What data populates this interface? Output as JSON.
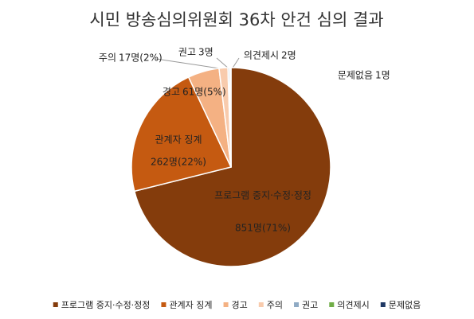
{
  "chart_data": {
    "type": "pie",
    "title": "시민 방송심의위원회 36차 안건 심의 결과",
    "categories": [
      "프로그램 중지·수정·정정",
      "관계자 징계",
      "경고",
      "주의",
      "권고",
      "의견제시",
      "문제없음"
    ],
    "values": [
      851,
      262,
      61,
      17,
      3,
      2,
      1
    ],
    "value_labels": [
      "851명(71%)",
      "262명(22%)",
      "61명(5%)",
      "17명(2%)",
      "3명",
      "2명",
      "1명"
    ],
    "colors": [
      "#843c0c",
      "#c55a11",
      "#f4b183",
      "#f8cbad",
      "#8faac4",
      "#70ad47",
      "#1f3864"
    ],
    "legend": "bottom"
  }
}
